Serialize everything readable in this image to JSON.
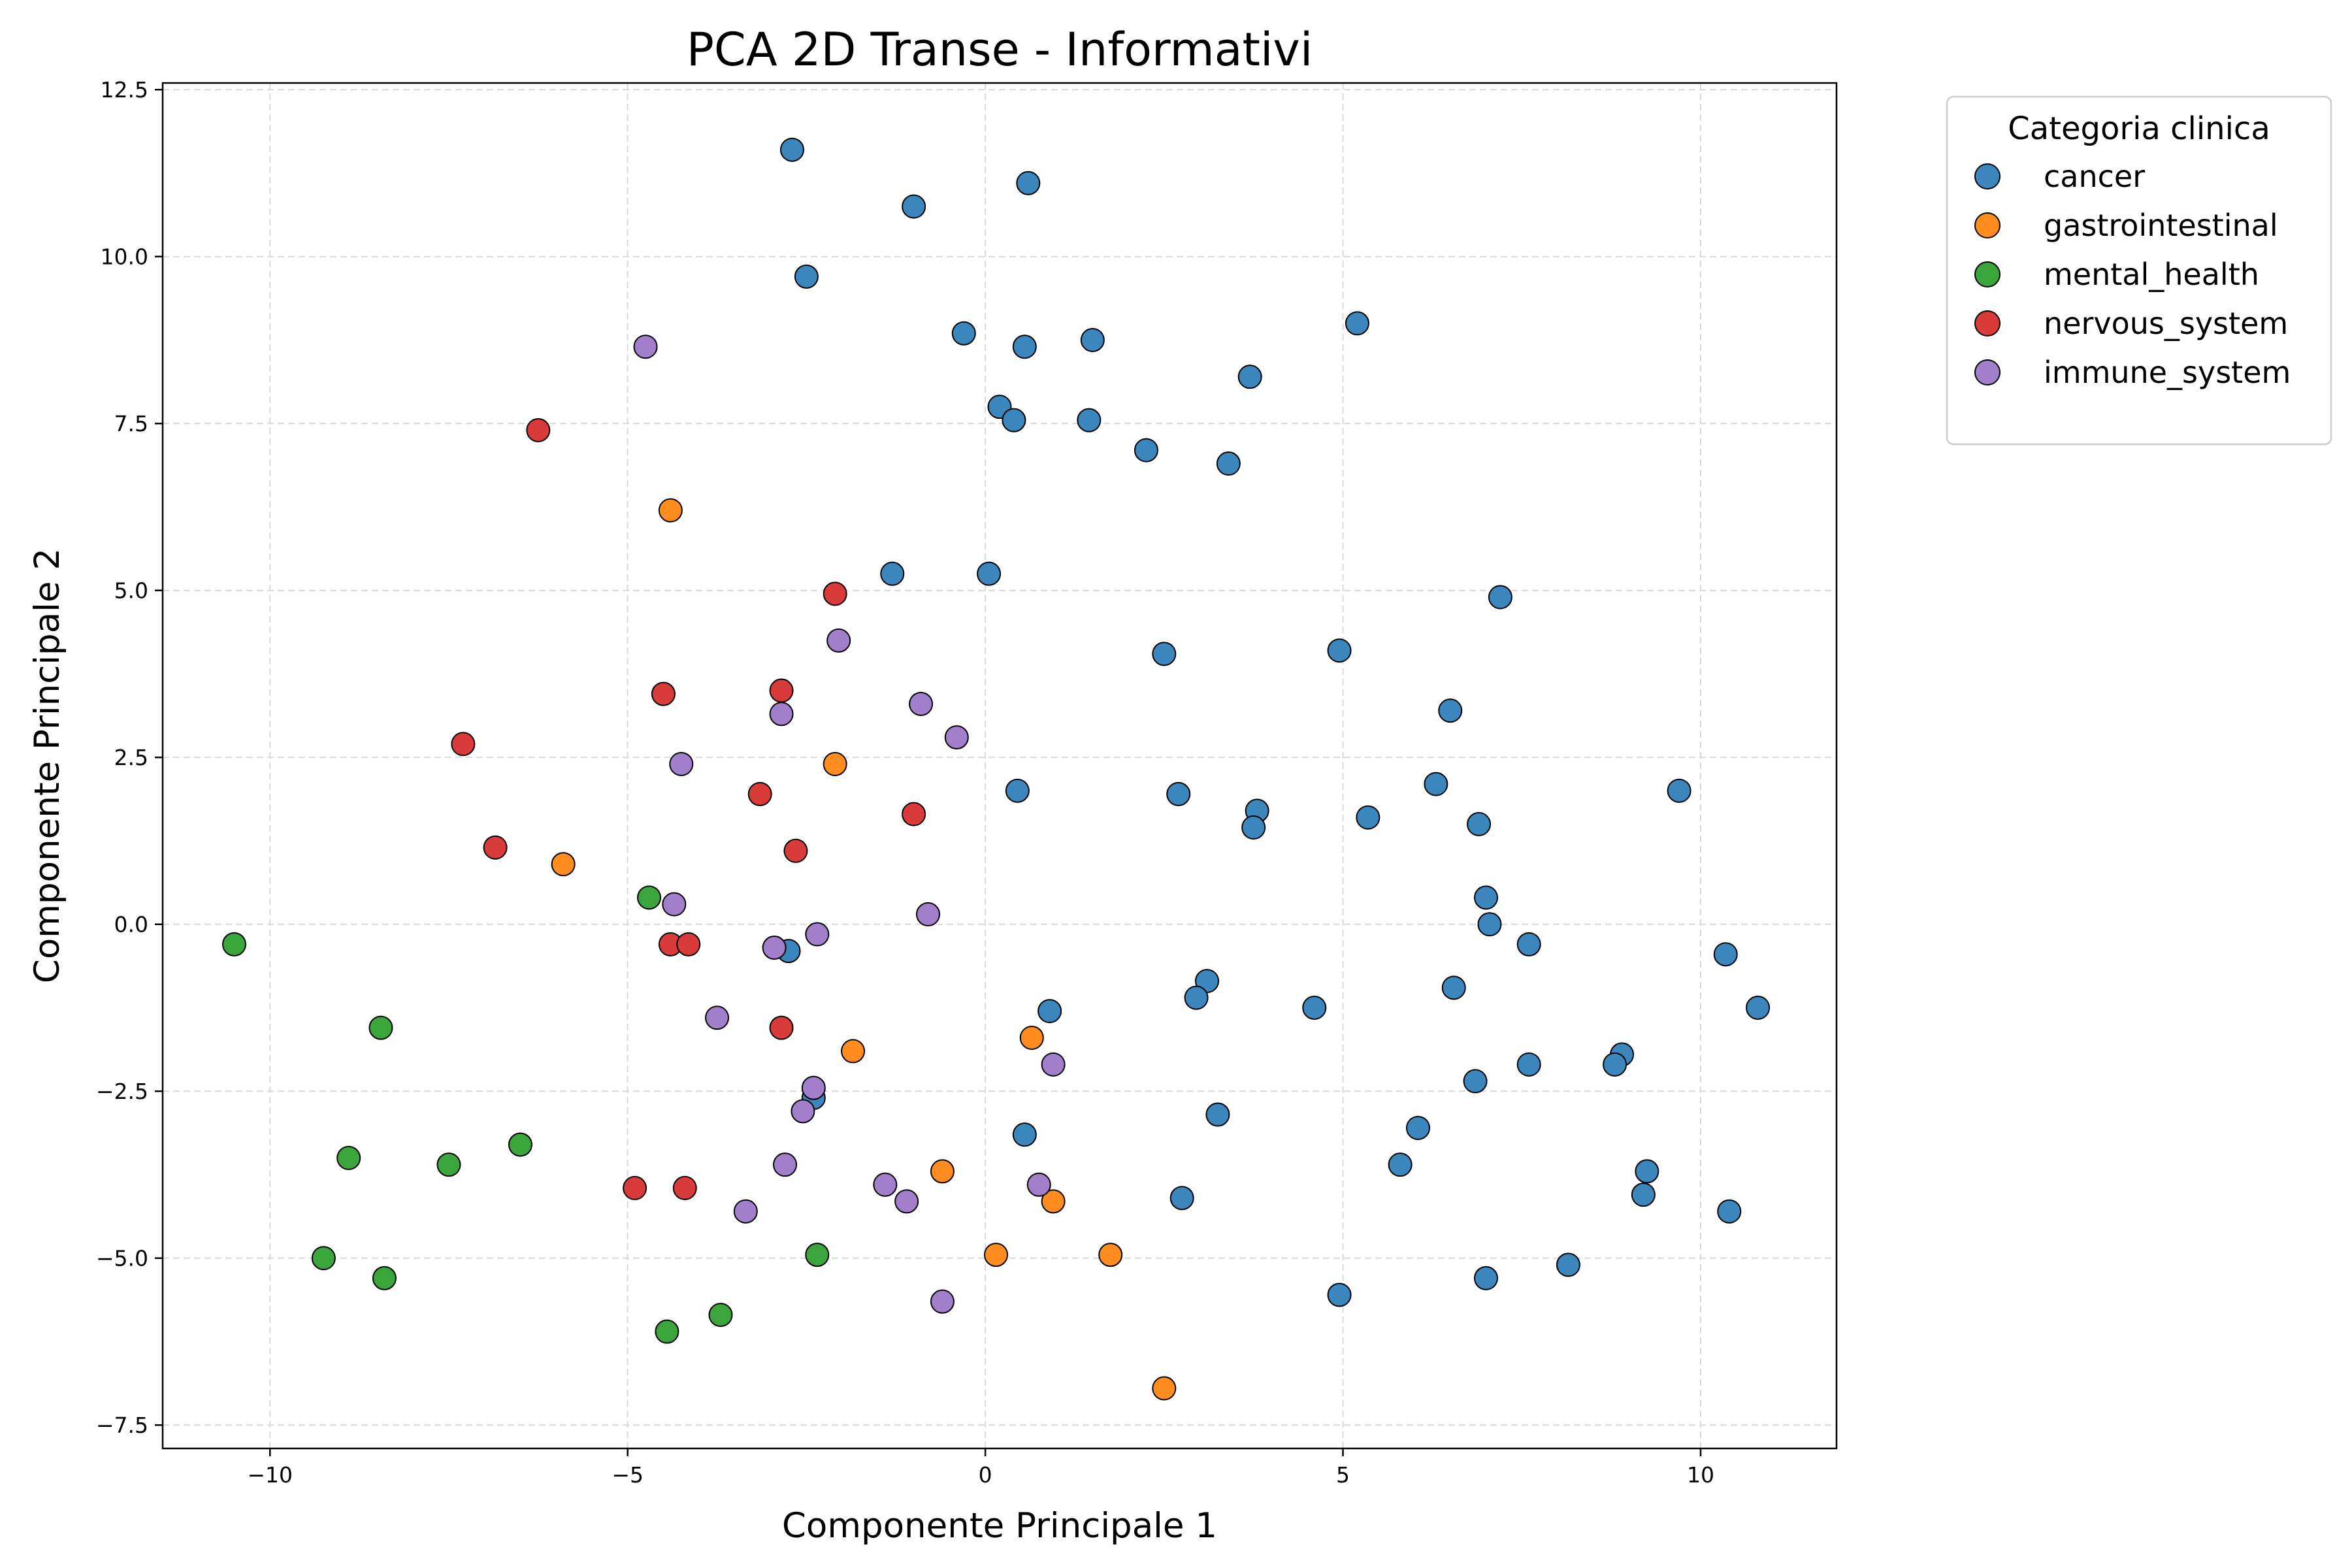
{
  "chart_data": {
    "type": "scatter",
    "title": "PCA 2D Transe - Informativi",
    "xlabel": "Componente Principale 1",
    "ylabel": "Componente Principale 2",
    "xlim": [
      -11.5,
      11.9
    ],
    "ylim": [
      -7.85,
      12.6
    ],
    "xticks": [
      -10,
      -5,
      0,
      5,
      10
    ],
    "xtick_labels": [
      "−10",
      "−5",
      "0",
      "5",
      "10"
    ],
    "yticks": [
      -7.5,
      -5.0,
      -2.5,
      0.0,
      2.5,
      5.0,
      7.5,
      10.0,
      12.5
    ],
    "ytick_labels": [
      "−7.5",
      "−5.0",
      "−2.5",
      "0.0",
      "2.5",
      "5.0",
      "7.5",
      "10.0",
      "12.5"
    ],
    "grid": true,
    "legend": {
      "title": "Categoria clinica",
      "placement": "outside-upper-right"
    },
    "series": [
      {
        "name": "cancer",
        "color": "#3a86bd",
        "points": [
          [
            -2.7,
            11.6
          ],
          [
            -1.0,
            10.75
          ],
          [
            0.6,
            11.1
          ],
          [
            -2.5,
            9.7
          ],
          [
            -0.3,
            8.85
          ],
          [
            0.55,
            8.65
          ],
          [
            1.5,
            8.75
          ],
          [
            5.2,
            9.0
          ],
          [
            3.7,
            8.2
          ],
          [
            0.2,
            7.75
          ],
          [
            0.4,
            7.55
          ],
          [
            1.45,
            7.55
          ],
          [
            2.25,
            7.1
          ],
          [
            3.4,
            6.9
          ],
          [
            -1.3,
            5.25
          ],
          [
            0.05,
            5.25
          ],
          [
            7.2,
            4.9
          ],
          [
            2.5,
            4.05
          ],
          [
            4.95,
            4.1
          ],
          [
            6.5,
            3.2
          ],
          [
            0.45,
            2.0
          ],
          [
            2.7,
            1.95
          ],
          [
            6.3,
            2.1
          ],
          [
            9.7,
            2.0
          ],
          [
            3.8,
            1.7
          ],
          [
            3.75,
            1.45
          ],
          [
            5.35,
            1.6
          ],
          [
            6.9,
            1.5
          ],
          [
            7.0,
            0.4
          ],
          [
            7.05,
            0.0
          ],
          [
            7.6,
            -0.3
          ],
          [
            10.35,
            -0.45
          ],
          [
            10.8,
            -1.25
          ],
          [
            -2.75,
            -0.4
          ],
          [
            0.9,
            -1.3
          ],
          [
            3.1,
            -0.85
          ],
          [
            2.95,
            -1.1
          ],
          [
            4.6,
            -1.25
          ],
          [
            6.55,
            -0.95
          ],
          [
            8.9,
            -1.95
          ],
          [
            8.8,
            -2.1
          ],
          [
            7.6,
            -2.1
          ],
          [
            6.85,
            -2.35
          ],
          [
            3.25,
            -2.85
          ],
          [
            -2.4,
            -2.6
          ],
          [
            0.55,
            -3.15
          ],
          [
            6.05,
            -3.05
          ],
          [
            5.8,
            -3.6
          ],
          [
            9.25,
            -3.7
          ],
          [
            9.2,
            -4.05
          ],
          [
            2.75,
            -4.1
          ],
          [
            10.4,
            -4.3
          ],
          [
            8.15,
            -5.1
          ],
          [
            7.0,
            -5.3
          ],
          [
            4.95,
            -5.55
          ]
        ]
      },
      {
        "name": "gastrointestinal",
        "color": "#ff8c1f",
        "points": [
          [
            -4.4,
            6.2
          ],
          [
            -2.1,
            2.4
          ],
          [
            -5.9,
            0.9
          ],
          [
            -1.85,
            -1.9
          ],
          [
            0.65,
            -1.7
          ],
          [
            -0.6,
            -3.7
          ],
          [
            0.95,
            -4.15
          ],
          [
            1.75,
            -4.95
          ],
          [
            0.15,
            -4.95
          ],
          [
            2.5,
            -6.95
          ]
        ]
      },
      {
        "name": "mental_health",
        "color": "#3aa53a",
        "points": [
          [
            -4.7,
            0.4
          ],
          [
            -10.5,
            -0.3
          ],
          [
            -8.45,
            -1.55
          ],
          [
            -6.5,
            -3.3
          ],
          [
            -8.9,
            -3.5
          ],
          [
            -7.5,
            -3.6
          ],
          [
            -9.25,
            -5.0
          ],
          [
            -8.4,
            -5.3
          ],
          [
            -2.35,
            -4.95
          ],
          [
            -3.7,
            -5.85
          ],
          [
            -4.45,
            -6.1
          ]
        ]
      },
      {
        "name": "nervous_system",
        "color": "#d93a3a",
        "points": [
          [
            -6.25,
            7.4
          ],
          [
            -2.1,
            4.95
          ],
          [
            -4.5,
            3.45
          ],
          [
            -2.85,
            3.5
          ],
          [
            -7.3,
            2.7
          ],
          [
            -3.15,
            1.95
          ],
          [
            -1.0,
            1.65
          ],
          [
            -6.85,
            1.15
          ],
          [
            -2.65,
            1.1
          ],
          [
            -4.4,
            -0.3
          ],
          [
            -4.15,
            -0.3
          ],
          [
            -2.85,
            -1.55
          ],
          [
            -4.9,
            -3.95
          ],
          [
            -4.2,
            -3.95
          ]
        ]
      },
      {
        "name": "immune_system",
        "color": "#a27fcb",
        "points": [
          [
            -4.75,
            8.65
          ],
          [
            -2.05,
            4.25
          ],
          [
            -0.9,
            3.3
          ],
          [
            -2.85,
            3.15
          ],
          [
            -0.4,
            2.8
          ],
          [
            -4.25,
            2.4
          ],
          [
            -4.35,
            0.3
          ],
          [
            -0.8,
            0.15
          ],
          [
            -2.35,
            -0.15
          ],
          [
            -2.95,
            -0.35
          ],
          [
            -3.75,
            -1.4
          ],
          [
            0.95,
            -2.1
          ],
          [
            -2.4,
            -2.45
          ],
          [
            -2.55,
            -2.8
          ],
          [
            -2.8,
            -3.6
          ],
          [
            -1.4,
            -3.9
          ],
          [
            0.75,
            -3.9
          ],
          [
            -1.1,
            -4.15
          ],
          [
            -3.35,
            -4.3
          ],
          [
            -0.6,
            -5.65
          ]
        ]
      }
    ]
  }
}
